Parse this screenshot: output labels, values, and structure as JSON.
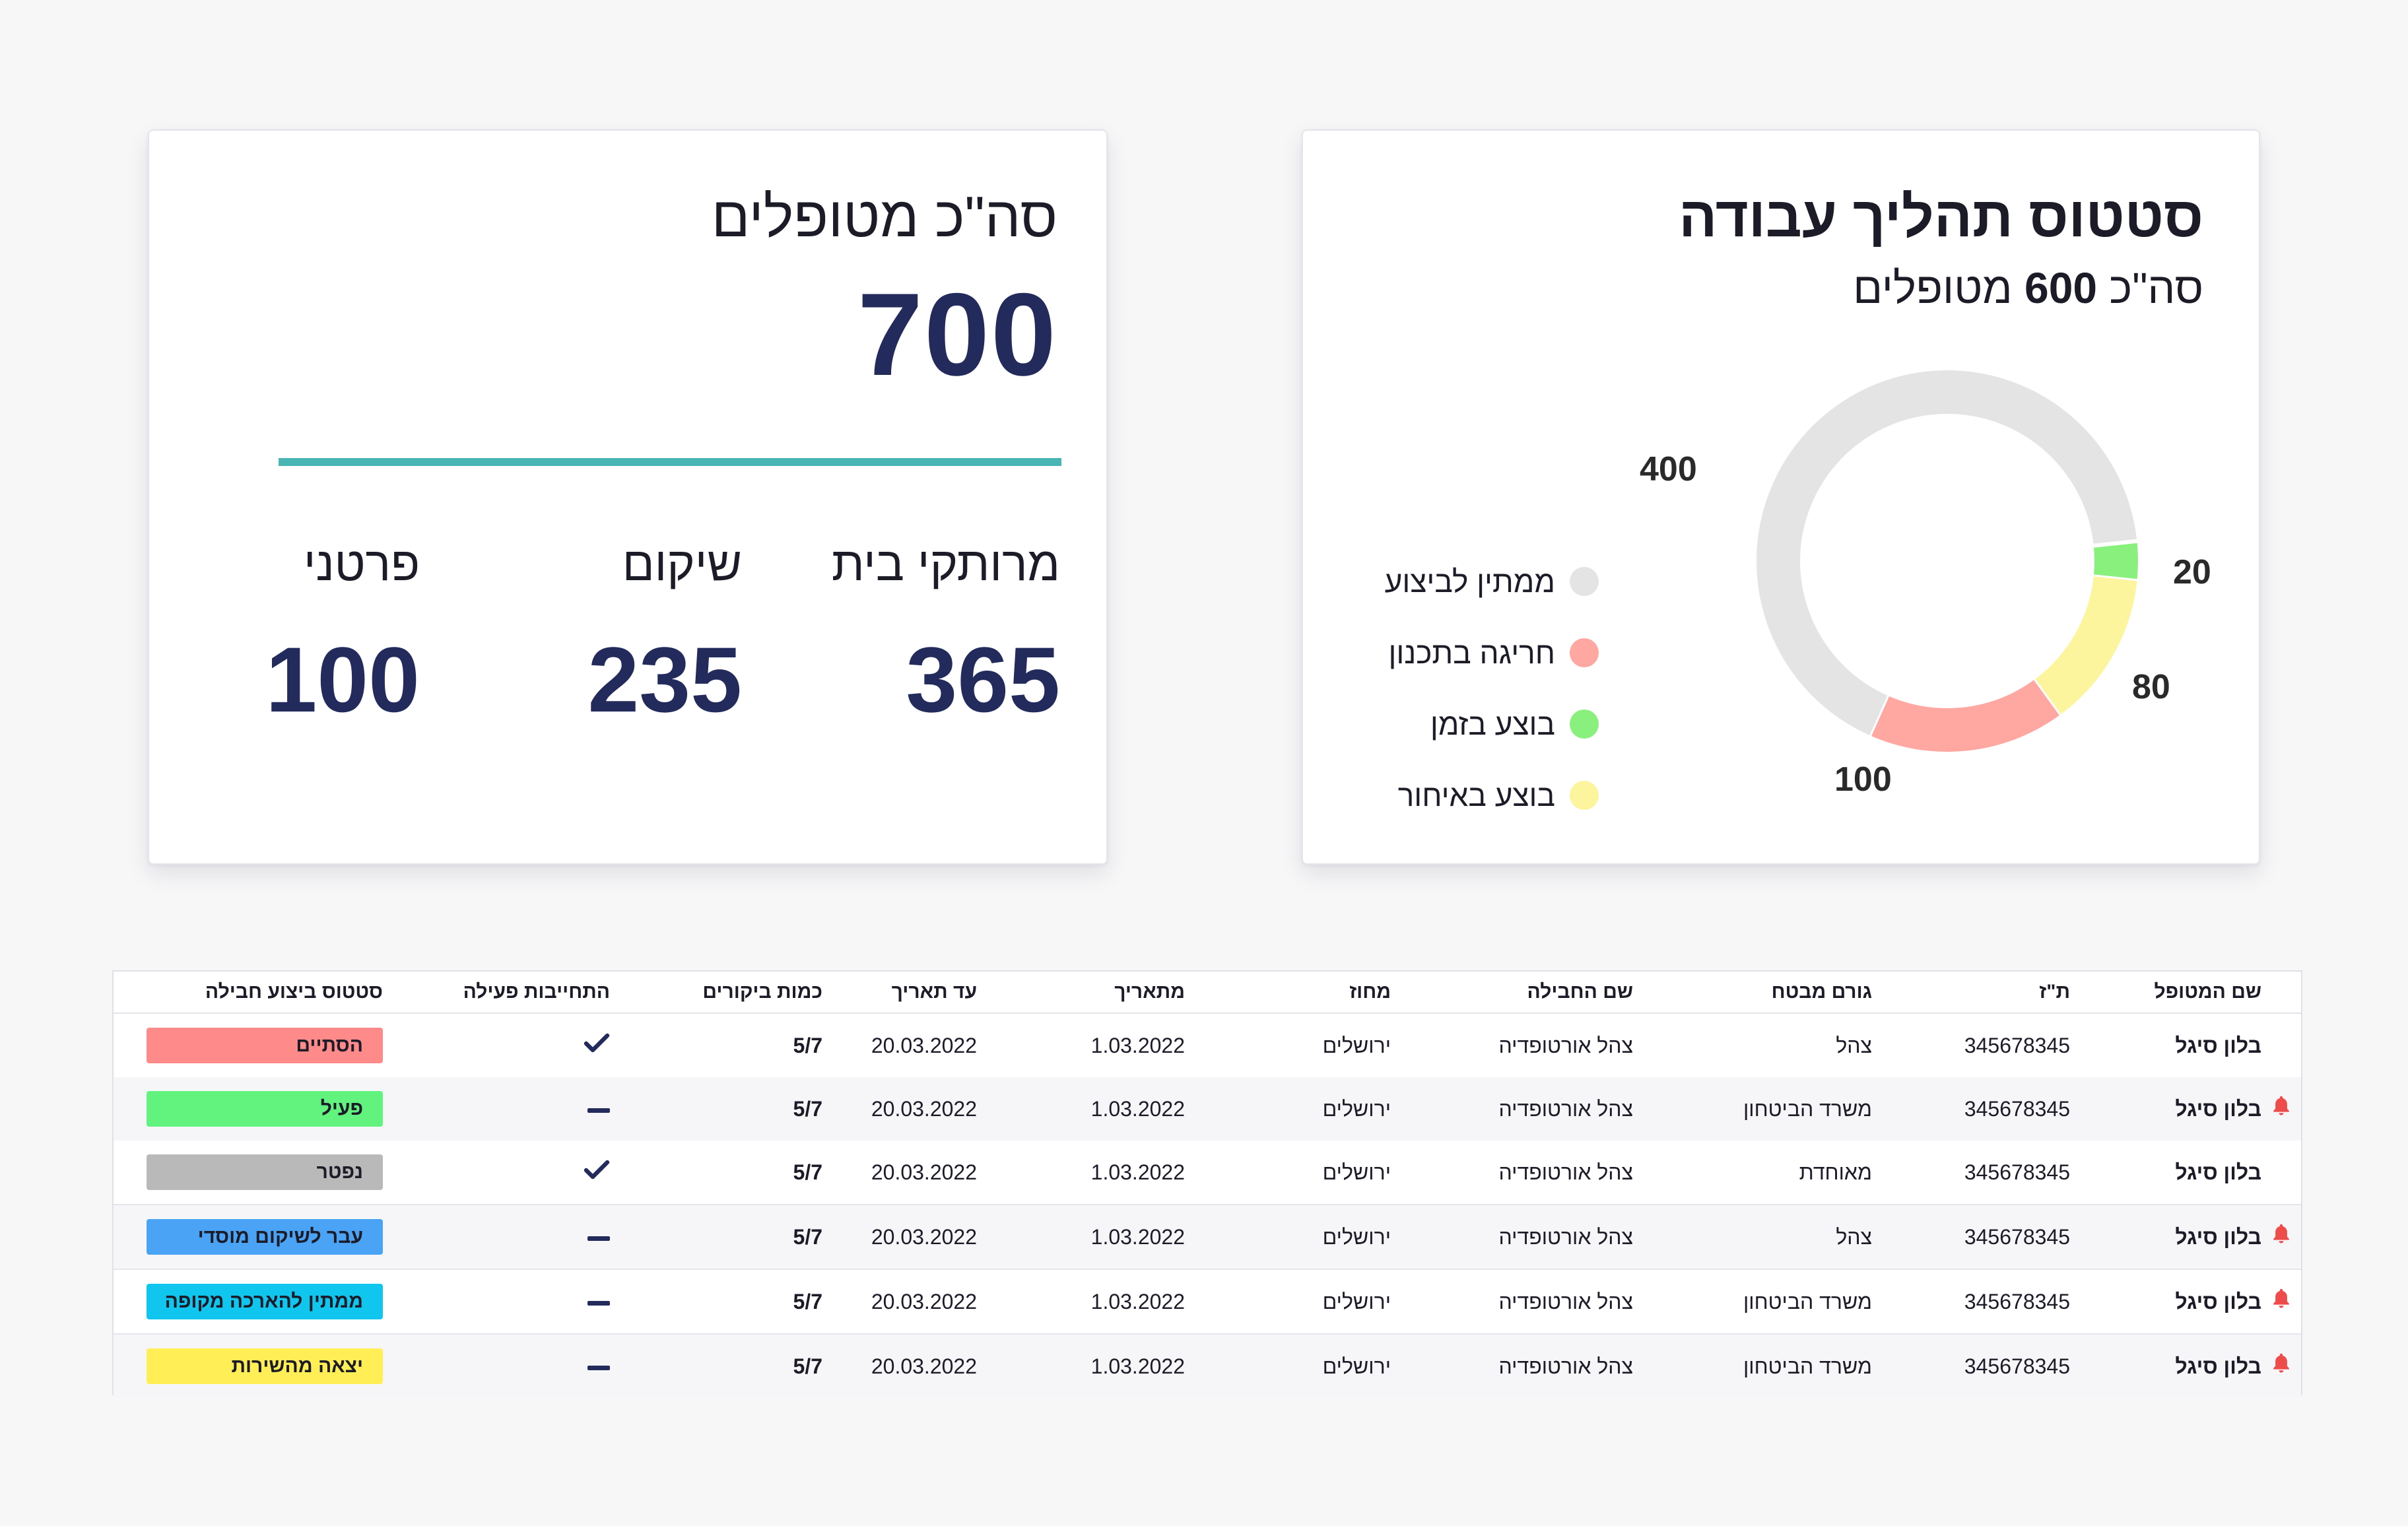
{
  "total_card": {
    "title": "סה\"כ מטופלים",
    "total": "700",
    "stats": [
      {
        "label": "מרותקי בית",
        "value": "365"
      },
      {
        "label": "שיקום",
        "value": "235"
      },
      {
        "label": "פרטני",
        "value": "100"
      }
    ]
  },
  "status_card": {
    "title": "סטטוס תהליך עבודה",
    "subtitle_prefix": "סה\"כ",
    "subtitle_number": "600",
    "subtitle_suffix": "מטופלים",
    "legend": [
      {
        "label": "ממתין לביצוע",
        "color": "#e4e4e4"
      },
      {
        "label": "חריגה בתכנון",
        "color": "#ffa7a0"
      },
      {
        "label": "בוצע בזמן",
        "color": "#8af07d"
      },
      {
        "label": "בוצע באיחור",
        "color": "#fdf59d"
      }
    ]
  },
  "chart_data": {
    "type": "pie",
    "title": "סטטוס תהליך עבודה",
    "categories": [
      "ממתין לביצוע",
      "חריגה בתכנון",
      "בוצע בזמן",
      "בוצע באיחור"
    ],
    "values": [
      400,
      100,
      20,
      80
    ],
    "colors": [
      "#e4e4e4",
      "#ffa7a0",
      "#8af07d",
      "#fdf59d"
    ],
    "value_labels": [
      "400",
      "100",
      "20",
      "80"
    ],
    "legend_position": "left"
  },
  "table": {
    "headers": {
      "name": "שם המטופל",
      "id": "ת\"ז",
      "funder": "גורם מבטח",
      "package": "שם החבילה",
      "district": "מחוז",
      "from": "מתאריך",
      "until": "עד תאריך",
      "visits": "כמות ביקורים",
      "commitment": "התחייבות פעילה",
      "status": "סטטוס ביצוע חבילה"
    },
    "rows": [
      {
        "alert": false,
        "name": "בלון סיגל",
        "id": "345678345",
        "funder": "צהל",
        "package": "צהל אורטופדיה",
        "district": "ירושלים",
        "from": "1.03.2022",
        "until": "20.03.2022",
        "visits": "5/7",
        "commitment": "check",
        "status": "הסתיים",
        "status_color": "#ff8a8a"
      },
      {
        "alert": true,
        "name": "בלון סיגל",
        "id": "345678345",
        "funder": "משרד הביטחון",
        "package": "צהל אורטופדיה",
        "district": "ירושלים",
        "from": "1.03.2022",
        "until": "20.03.2022",
        "visits": "5/7",
        "commitment": "dash",
        "status": "פעיל",
        "status_color": "#62f27e"
      },
      {
        "alert": false,
        "name": "בלון סיגל",
        "id": "345678345",
        "funder": "מאוחדת",
        "package": "צהל אורטופדיה",
        "district": "ירושלים",
        "from": "1.03.2022",
        "until": "20.03.2022",
        "visits": "5/7",
        "commitment": "check",
        "status": "נפטר",
        "status_color": "#b9b9b9"
      },
      {
        "alert": true,
        "name": "בלון סיגל",
        "id": "345678345",
        "funder": "צהל",
        "package": "צהל אורטופדיה",
        "district": "ירושלים",
        "from": "1.03.2022",
        "until": "20.03.2022",
        "visits": "5/7",
        "commitment": "dash",
        "status": "עבר לשיקום מוסדי",
        "status_color": "#4aa3f5"
      },
      {
        "alert": true,
        "name": "בלון סיגל",
        "id": "345678345",
        "funder": "משרד הביטחון",
        "package": "צהל אורטופדיה",
        "district": "ירושלים",
        "from": "1.03.2022",
        "until": "20.03.2022",
        "visits": "5/7",
        "commitment": "dash",
        "status": "ממתין להארכה מקופה",
        "status_color": "#11c6ee"
      },
      {
        "alert": true,
        "name": "בלון סיגל",
        "id": "345678345",
        "funder": "משרד הביטחון",
        "package": "צהל אורטופדיה",
        "district": "ירושלים",
        "from": "1.03.2022",
        "until": "20.03.2022",
        "visits": "5/7",
        "commitment": "dash",
        "status": "יצאה מהשירות",
        "status_color": "#ffee55"
      }
    ]
  }
}
